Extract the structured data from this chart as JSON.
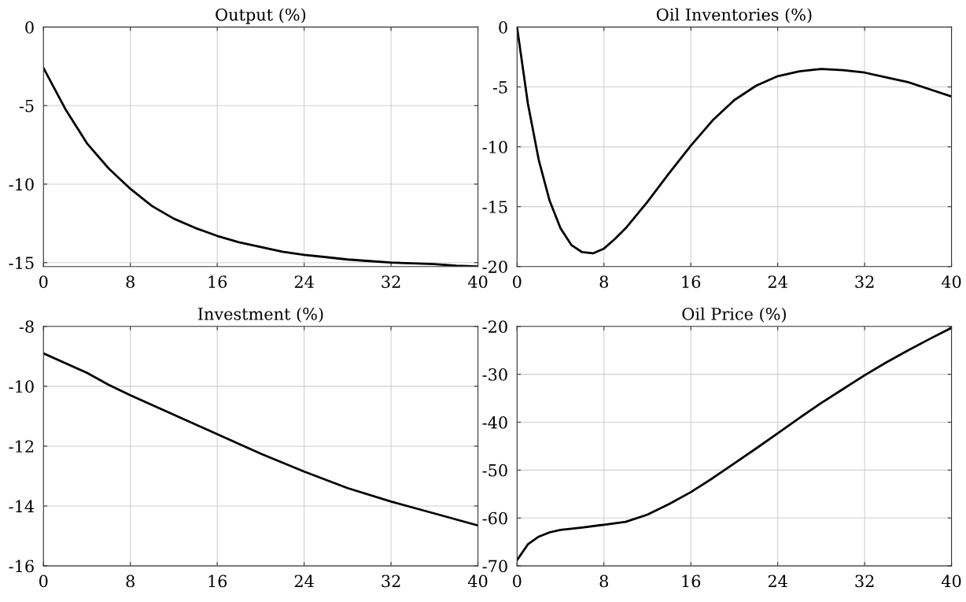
{
  "chart_data": [
    {
      "type": "line",
      "title": "Output (%)",
      "x": [
        0,
        2,
        4,
        6,
        8,
        10,
        12,
        14,
        16,
        18,
        20,
        22,
        24,
        26,
        28,
        30,
        32,
        34,
        36,
        38,
        40
      ],
      "series": [
        {
          "color": "#000000",
          "values": [
            -2.6,
            -5.2,
            -7.4,
            -9.0,
            -10.3,
            -11.4,
            -12.2,
            -12.8,
            -13.3,
            -13.7,
            -14.0,
            -14.3,
            -14.5,
            -14.65,
            -14.8,
            -14.9,
            -15.0,
            -15.05,
            -15.1,
            -15.2,
            -15.25
          ]
        }
      ],
      "xlim": [
        0,
        40
      ],
      "xticks": [
        0,
        8,
        16,
        24,
        32,
        40
      ],
      "ylim": [
        -15.25,
        0
      ],
      "yticks": [
        -15,
        -10,
        -5,
        0
      ],
      "grid": true
    },
    {
      "type": "line",
      "title": "Oil Inventories (%)",
      "x": [
        0,
        1,
        2,
        3,
        4,
        5,
        6,
        7,
        8,
        9,
        10,
        12,
        14,
        16,
        18,
        20,
        22,
        24,
        26,
        28,
        30,
        32,
        34,
        36,
        38,
        40
      ],
      "series": [
        {
          "color": "#000000",
          "values": [
            0,
            -6.4,
            -11.1,
            -14.5,
            -16.8,
            -18.2,
            -18.8,
            -18.9,
            -18.5,
            -17.7,
            -16.8,
            -14.6,
            -12.2,
            -9.9,
            -7.8,
            -6.1,
            -4.9,
            -4.1,
            -3.7,
            -3.5,
            -3.6,
            -3.8,
            -4.2,
            -4.6,
            -5.2,
            -5.8
          ]
        }
      ],
      "xlim": [
        0,
        40
      ],
      "xticks": [
        0,
        8,
        16,
        24,
        32,
        40
      ],
      "ylim": [
        -20,
        0
      ],
      "yticks": [
        -20,
        -15,
        -10,
        -5,
        0
      ],
      "grid": true
    },
    {
      "type": "line",
      "title": "Investment (%)",
      "x": [
        0,
        4,
        6,
        8,
        12,
        16,
        20,
        24,
        28,
        32,
        36,
        40
      ],
      "series": [
        {
          "color": "#000000",
          "values": [
            -8.9,
            -9.55,
            -9.95,
            -10.3,
            -10.95,
            -11.6,
            -12.25,
            -12.85,
            -13.4,
            -13.85,
            -14.25,
            -14.65
          ]
        }
      ],
      "xlim": [
        0,
        40
      ],
      "xticks": [
        0,
        8,
        16,
        24,
        32,
        40
      ],
      "ylim": [
        -16,
        -8
      ],
      "yticks": [
        -16,
        -14,
        -12,
        -10,
        -8
      ],
      "grid": true
    },
    {
      "type": "line",
      "title": "Oil Price (%)",
      "x": [
        0,
        1,
        2,
        3,
        4,
        6,
        8,
        10,
        12,
        14,
        16,
        18,
        20,
        22,
        24,
        26,
        28,
        30,
        32,
        34,
        36,
        38,
        40
      ],
      "series": [
        {
          "color": "#000000",
          "values": [
            -68.8,
            -65.5,
            -63.9,
            -63.0,
            -62.5,
            -62.0,
            -61.4,
            -60.8,
            -59.3,
            -57.1,
            -54.6,
            -51.7,
            -48.6,
            -45.5,
            -42.3,
            -39.1,
            -36.0,
            -33.1,
            -30.2,
            -27.5,
            -25.0,
            -22.6,
            -20.3
          ]
        }
      ],
      "xlim": [
        0,
        40
      ],
      "xticks": [
        0,
        8,
        16,
        24,
        32,
        40
      ],
      "ylim": [
        -70,
        -20
      ],
      "yticks": [
        -70,
        -60,
        -50,
        -40,
        -30,
        -20
      ],
      "grid": true
    }
  ]
}
